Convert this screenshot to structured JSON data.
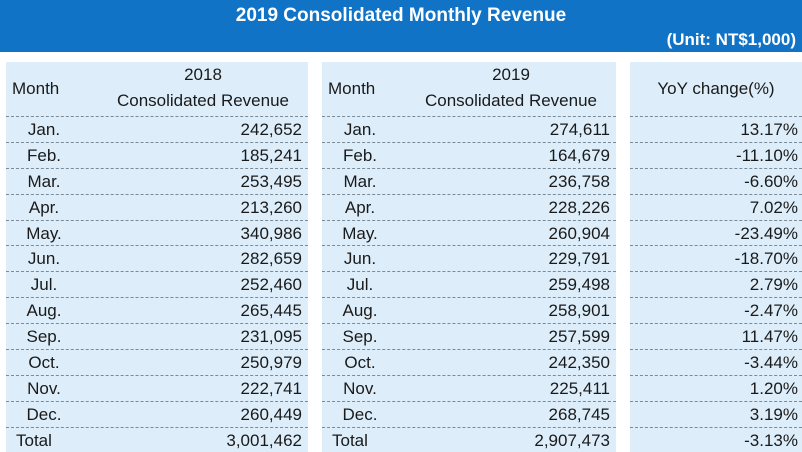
{
  "title": "2019 Consolidated Monthly Revenue",
  "unit": "(Unit: NT$1,000)",
  "headers": {
    "month": "Month",
    "year_2018": "2018",
    "year_2019": "2019",
    "revenue": "Consolidated Revenue",
    "yoy": "YoY change(%)"
  },
  "rows": [
    {
      "month": "Jan.",
      "rev2018": "242,652",
      "rev2019": "274,611",
      "yoy": "13.17%"
    },
    {
      "month": "Feb.",
      "rev2018": "185,241",
      "rev2019": "164,679",
      "yoy": "-11.10%"
    },
    {
      "month": "Mar.",
      "rev2018": "253,495",
      "rev2019": "236,758",
      "yoy": "-6.60%"
    },
    {
      "month": "Apr.",
      "rev2018": "213,260",
      "rev2019": "228,226",
      "yoy": "7.02%"
    },
    {
      "month": "May.",
      "rev2018": "340,986",
      "rev2019": "260,904",
      "yoy": "-23.49%"
    },
    {
      "month": "Jun.",
      "rev2018": "282,659",
      "rev2019": "229,791",
      "yoy": "-18.70%"
    },
    {
      "month": "Jul.",
      "rev2018": "252,460",
      "rev2019": "259,498",
      "yoy": "2.79%"
    },
    {
      "month": "Aug.",
      "rev2018": "265,445",
      "rev2019": "258,901",
      "yoy": "-2.47%"
    },
    {
      "month": "Sep.",
      "rev2018": "231,095",
      "rev2019": "257,599",
      "yoy": "11.47%"
    },
    {
      "month": "Oct.",
      "rev2018": "250,979",
      "rev2019": "242,350",
      "yoy": "-3.44%"
    },
    {
      "month": "Nov.",
      "rev2018": "222,741",
      "rev2019": "225,411",
      "yoy": "1.20%"
    },
    {
      "month": "Dec.",
      "rev2018": "260,449",
      "rev2019": "268,745",
      "yoy": "3.19%"
    }
  ],
  "total": {
    "label": "Total",
    "rev2018": "3,001,462",
    "rev2019": "2,907,473",
    "yoy": "-3.13%"
  },
  "colors": {
    "banner": "#1173c6",
    "panel": "#ddeefa",
    "rule": "#7c8a95"
  }
}
